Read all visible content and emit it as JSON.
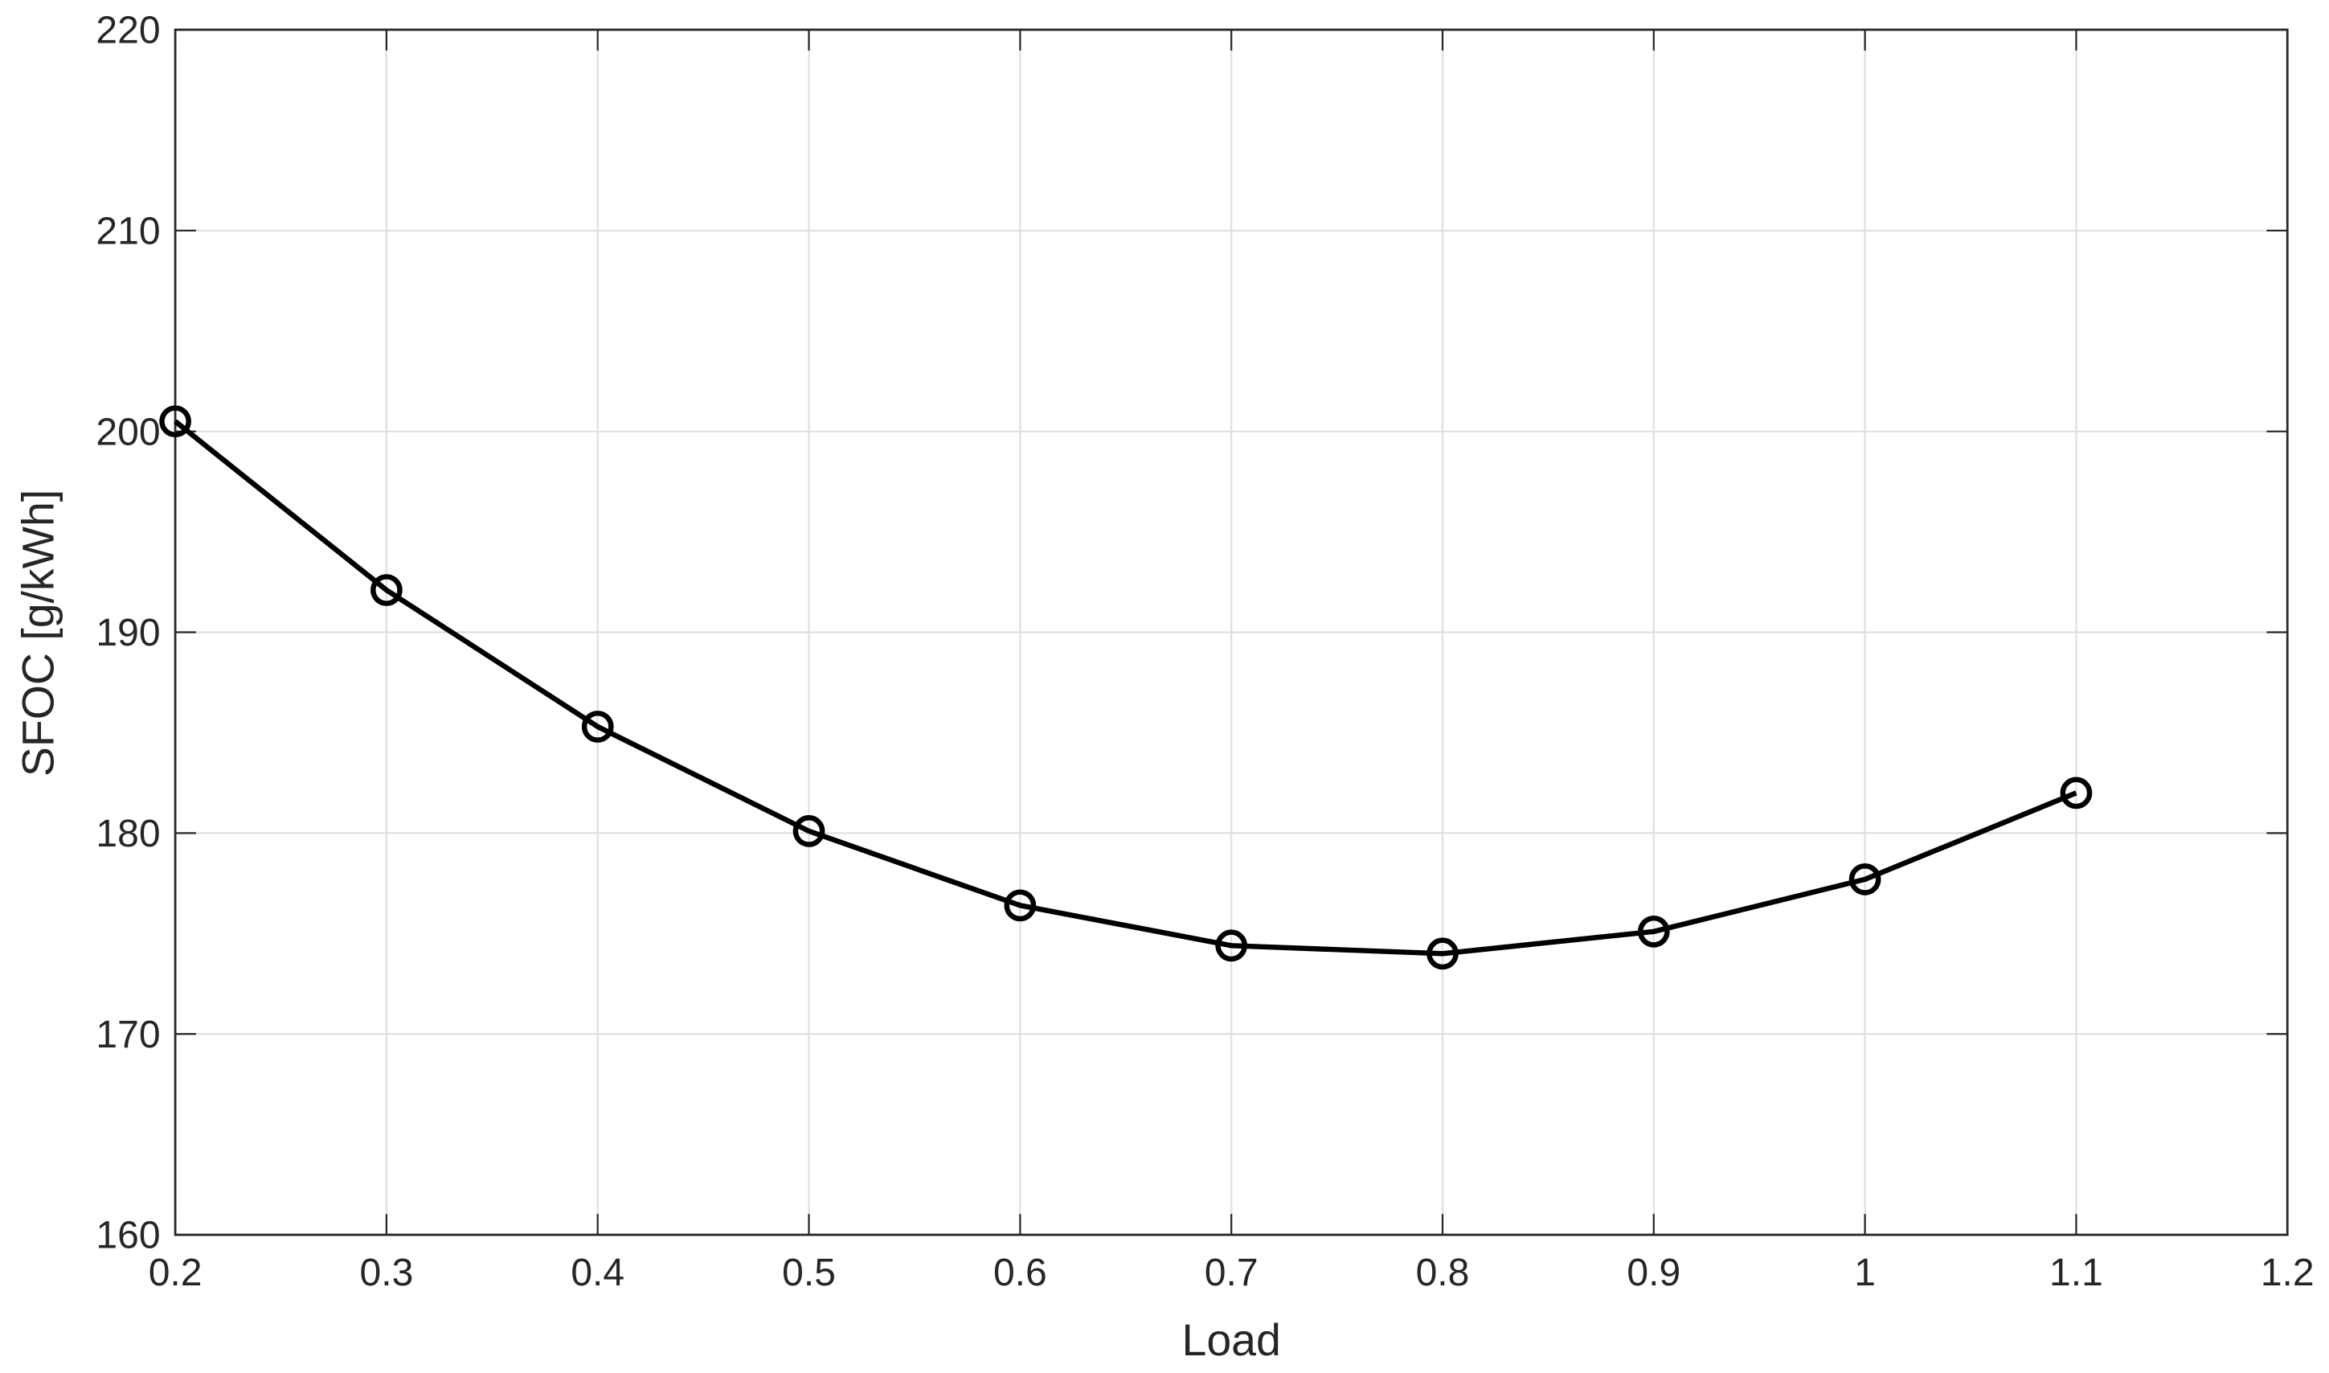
{
  "chart_data": {
    "type": "line",
    "x_label": "Load",
    "y_label": "SFOC [g/kWh]",
    "x": [
      0.2,
      0.3,
      0.4,
      0.5,
      0.6,
      0.7,
      0.8,
      0.9,
      1,
      1.1
    ],
    "series": [
      {
        "color": "#000000",
        "values": [
          200.5,
          192.1,
          185.3,
          180.1,
          176.4,
          174.4,
          174.0,
          175.1,
          177.7,
          182.0
        ]
      }
    ],
    "xlim": [
      0.2,
      1.2
    ],
    "xticks": [
      0.2,
      0.3,
      0.4,
      0.5,
      0.6,
      0.7,
      0.8,
      0.9,
      1,
      1.1,
      1.2
    ],
    "ylim": [
      160,
      220
    ],
    "yticks": [
      160,
      170,
      180,
      190,
      200,
      210,
      220
    ],
    "grid": true,
    "marker": "circle"
  }
}
